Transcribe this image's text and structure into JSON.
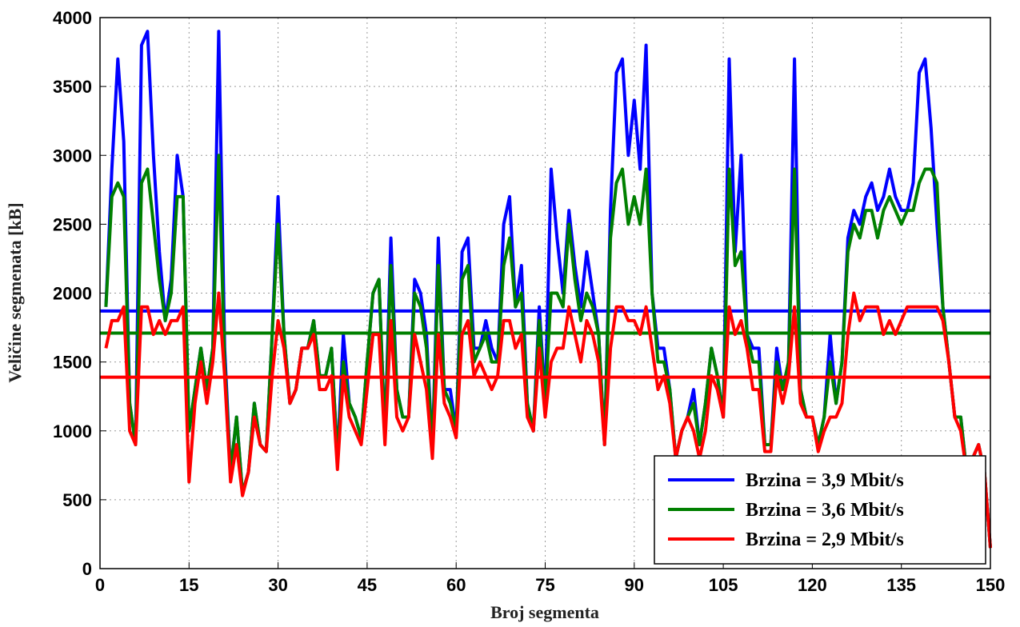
{
  "chart_data": {
    "type": "line",
    "xlabel": "Broj segmenta",
    "ylabel": "Veličine segmenata [kB]",
    "x": [
      1,
      2,
      3,
      4,
      5,
      6,
      7,
      8,
      9,
      10,
      11,
      12,
      13,
      14,
      15,
      16,
      17,
      18,
      19,
      20,
      21,
      22,
      23,
      24,
      25,
      26,
      27,
      28,
      29,
      30,
      31,
      32,
      33,
      34,
      35,
      36,
      37,
      38,
      39,
      40,
      41,
      42,
      43,
      44,
      45,
      46,
      47,
      48,
      49,
      50,
      51,
      52,
      53,
      54,
      55,
      56,
      57,
      58,
      59,
      60,
      61,
      62,
      63,
      64,
      65,
      66,
      67,
      68,
      69,
      70,
      71,
      72,
      73,
      74,
      75,
      76,
      77,
      78,
      79,
      80,
      81,
      82,
      83,
      84,
      85,
      86,
      87,
      88,
      89,
      90,
      91,
      92,
      93,
      94,
      95,
      96,
      97,
      98,
      99,
      100,
      101,
      102,
      103,
      104,
      105,
      106,
      107,
      108,
      109,
      110,
      111,
      112,
      113,
      114,
      115,
      116,
      117,
      118,
      119,
      120,
      121,
      122,
      123,
      124,
      125,
      126,
      127,
      128,
      129,
      130,
      131,
      132,
      133,
      134,
      135,
      136,
      137,
      138,
      139,
      140,
      141,
      142,
      143,
      144,
      145,
      146,
      147,
      148,
      149,
      150
    ],
    "series": [
      {
        "name": "Brzina = 3,9 Mbit/s",
        "color": "#0000ff",
        "mean": 1870,
        "values": [
          1900,
          2900,
          3700,
          3100,
          1200,
          900,
          3800,
          3900,
          3000,
          2300,
          1800,
          2100,
          3000,
          2700,
          1000,
          1300,
          1600,
          1300,
          1600,
          3900,
          1600,
          700,
          1100,
          550,
          700,
          1200,
          900,
          850,
          1700,
          2700,
          1700,
          1200,
          1300,
          1600,
          1600,
          1800,
          1400,
          1400,
          1600,
          800,
          1700,
          1200,
          1100,
          950,
          1500,
          2000,
          2100,
          950,
          2400,
          1300,
          1100,
          1100,
          2100,
          2000,
          1700,
          850,
          2400,
          1300,
          1300,
          1000,
          2300,
          2400,
          1600,
          1600,
          1800,
          1600,
          1500,
          2500,
          2700,
          1900,
          2200,
          1200,
          1000,
          1900,
          1200,
          2900,
          2400,
          2000,
          2600,
          2200,
          1900,
          2300,
          2000,
          1700,
          900,
          2600,
          3600,
          3700,
          3000,
          3400,
          2900,
          3800,
          2000,
          1600,
          1600,
          1300,
          800,
          1000,
          1100,
          1300,
          900,
          1200,
          1600,
          1400,
          1100,
          3700,
          2300,
          3000,
          1700,
          1600,
          1600,
          900,
          900,
          1600,
          1300,
          1500,
          3700,
          1300,
          1100,
          1100,
          900,
          1100,
          1700,
          1200,
          1500,
          2400,
          2600,
          2500,
          2700,
          2800,
          2600,
          2700,
          2900,
          2700,
          2600,
          2600,
          2800,
          3600,
          3700,
          3200,
          2500,
          1900,
          1500,
          1100,
          1100,
          700,
          800,
          900,
          700,
          150
        ]
      },
      {
        "name": "Brzina = 3,6 Mbit/s",
        "color": "#008000",
        "mean": 1710,
        "values": [
          1900,
          2700,
          2800,
          2700,
          1200,
          900,
          2800,
          2900,
          2500,
          2100,
          1800,
          2000,
          2700,
          2700,
          1000,
          1300,
          1600,
          1300,
          1600,
          3000,
          1500,
          700,
          1100,
          550,
          700,
          1200,
          900,
          850,
          1700,
          2500,
          1700,
          1200,
          1300,
          1600,
          1600,
          1800,
          1400,
          1400,
          1600,
          800,
          1500,
          1200,
          1100,
          950,
          1500,
          2000,
          2100,
          950,
          2200,
          1300,
          1100,
          1100,
          2000,
          1900,
          1600,
          850,
          2200,
          1300,
          1200,
          1000,
          2100,
          2200,
          1500,
          1600,
          1700,
          1500,
          1500,
          2200,
          2400,
          1900,
          2000,
          1200,
          1000,
          1800,
          1200,
          2000,
          2000,
          1900,
          2500,
          2100,
          1800,
          2000,
          1900,
          1700,
          900,
          2400,
          2800,
          2900,
          2500,
          2700,
          2500,
          2900,
          2000,
          1500,
          1500,
          1300,
          800,
          1000,
          1100,
          1200,
          900,
          1200,
          1600,
          1400,
          1100,
          2900,
          2200,
          2300,
          1700,
          1500,
          1500,
          900,
          900,
          1500,
          1300,
          1500,
          2900,
          1300,
          1100,
          1100,
          900,
          1100,
          1500,
          1200,
          1500,
          2300,
          2500,
          2400,
          2600,
          2600,
          2400,
          2600,
          2700,
          2600,
          2500,
          2600,
          2600,
          2800,
          2900,
          2900,
          2800,
          1900,
          1500,
          1100,
          1100,
          700,
          800,
          900,
          700,
          150
        ]
      },
      {
        "name": "Brzina = 2,9 Mbit/s",
        "color": "#ff0000",
        "mean": 1390,
        "values": [
          1600,
          1800,
          1800,
          1900,
          1000,
          900,
          1900,
          1900,
          1700,
          1800,
          1700,
          1800,
          1800,
          1900,
          630,
          1200,
          1500,
          1200,
          1500,
          2000,
          1400,
          630,
          900,
          530,
          700,
          1100,
          900,
          850,
          1400,
          1800,
          1600,
          1200,
          1300,
          1600,
          1600,
          1700,
          1300,
          1300,
          1400,
          720,
          1400,
          1100,
          1000,
          900,
          1300,
          1700,
          1700,
          900,
          1800,
          1100,
          1000,
          1100,
          1700,
          1500,
          1300,
          800,
          1700,
          1200,
          1100,
          950,
          1700,
          1800,
          1400,
          1500,
          1400,
          1300,
          1400,
          1800,
          1800,
          1600,
          1700,
          1100,
          1000,
          1600,
          1100,
          1500,
          1600,
          1600,
          1900,
          1700,
          1500,
          1800,
          1700,
          1500,
          900,
          1600,
          1900,
          1900,
          1800,
          1800,
          1700,
          1900,
          1600,
          1300,
          1400,
          1200,
          800,
          1000,
          1100,
          1000,
          800,
          1000,
          1400,
          1300,
          1100,
          1900,
          1700,
          1800,
          1600,
          1300,
          1300,
          850,
          850,
          1400,
          1200,
          1400,
          1900,
          1200,
          1100,
          1100,
          850,
          1000,
          1100,
          1100,
          1200,
          1700,
          2000,
          1800,
          1900,
          1900,
          1900,
          1700,
          1800,
          1700,
          1800,
          1900,
          1900,
          1900,
          1900,
          1900,
          1900,
          1800,
          1500,
          1100,
          1000,
          700,
          800,
          900,
          700,
          150
        ]
      }
    ],
    "xlim": [
      0,
      150
    ],
    "xticks": [
      0,
      15,
      30,
      45,
      60,
      75,
      90,
      105,
      120,
      135,
      150
    ],
    "ylim": [
      0,
      4000
    ],
    "yticks": [
      0,
      500,
      1000,
      1500,
      2000,
      2500,
      3000,
      3500,
      4000
    ],
    "grid": true,
    "legend": "lower right"
  }
}
